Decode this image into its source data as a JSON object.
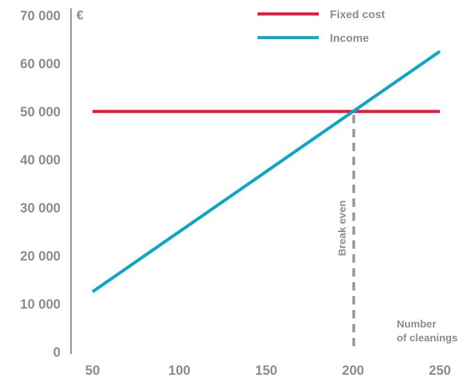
{
  "chart_data": {
    "type": "line",
    "ylabel": "€",
    "xlabel_lines": [
      "Number",
      "of cleanings"
    ],
    "xlim": [
      50,
      250
    ],
    "ylim": [
      0,
      70000
    ],
    "x_ticks": [
      50,
      100,
      150,
      200,
      250
    ],
    "x_tick_labels": [
      "50",
      "100",
      "150",
      "200",
      "250"
    ],
    "y_ticks": [
      0,
      10000,
      20000,
      30000,
      40000,
      50000,
      60000,
      70000
    ],
    "y_tick_labels": [
      "0",
      "10 000",
      "20 000",
      "30 000",
      "40 000",
      "50 000",
      "60 000",
      "70 000"
    ],
    "series": [
      {
        "name": "Fixed cost",
        "color": "#e31b3d",
        "x": [
          50,
          250
        ],
        "y": [
          50000,
          50000
        ]
      },
      {
        "name": "Income",
        "color": "#0ea5c6",
        "x": [
          50,
          250
        ],
        "y": [
          12500,
          62500
        ]
      }
    ],
    "annotations": [
      {
        "text": "Break even",
        "x": 200,
        "y_from": 0,
        "y_to": 50000,
        "color": "#999999",
        "style": "dashed"
      }
    ],
    "legend_position": "top-right",
    "grid": false
  }
}
